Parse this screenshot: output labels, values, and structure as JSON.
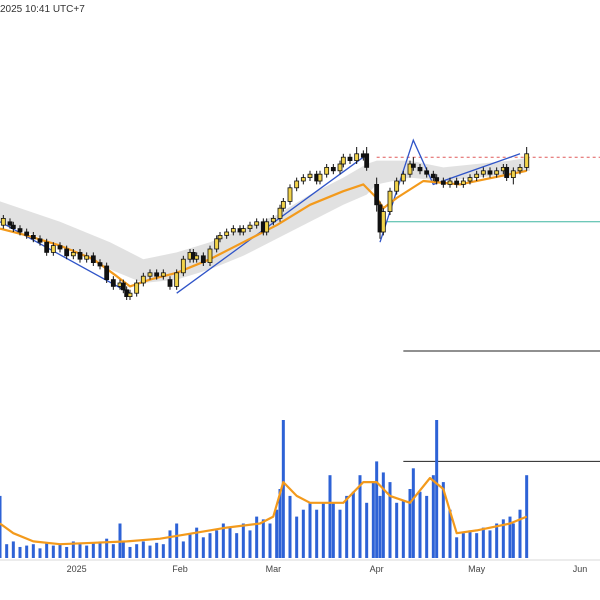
{
  "header": {
    "timestamp": "2025 10:41 UTC+7"
  },
  "colors": {
    "candle_up_body": "#f2d34a",
    "candle_down_body": "#111111",
    "moving_average": "#f39a1c",
    "band_fill": "#dcdcdc",
    "trend_lines": "#2f54c8",
    "volume_bar": "#2d62d6",
    "volume_average": "#f39a1c",
    "resistance_line": "#e05a5a",
    "support_line": "#3fb6a0",
    "reference_line": "#222222"
  },
  "chart_data": {
    "type": "candlestick",
    "x_axis": {
      "ticks": [
        "2025",
        "Feb",
        "Mar",
        "Apr",
        "May",
        "Jun"
      ],
      "tick_days": [
        0,
        31,
        59,
        90,
        120,
        151
      ],
      "range_days": [
        -23,
        157
      ]
    },
    "price_pane": {
      "ylim": [
        0,
        100
      ],
      "candles": [
        {
          "d": -22,
          "o": 72,
          "c": 74,
          "h": 75,
          "l": 71
        },
        {
          "d": -20,
          "o": 73,
          "c": 72,
          "h": 74,
          "l": 71
        },
        {
          "d": -19,
          "o": 72,
          "c": 71,
          "h": 73,
          "l": 70
        },
        {
          "d": -17,
          "o": 71,
          "c": 70,
          "h": 72,
          "l": 69
        },
        {
          "d": -15,
          "o": 70,
          "c": 69,
          "h": 71,
          "l": 68
        },
        {
          "d": -13,
          "o": 69,
          "c": 68,
          "h": 70,
          "l": 67
        },
        {
          "d": -11,
          "o": 68,
          "c": 67,
          "h": 69,
          "l": 66
        },
        {
          "d": -9,
          "o": 67,
          "c": 64,
          "h": 68,
          "l": 63
        },
        {
          "d": -7,
          "o": 64,
          "c": 66,
          "h": 67,
          "l": 63
        },
        {
          "d": -5,
          "o": 66,
          "c": 65,
          "h": 67,
          "l": 64
        },
        {
          "d": -3,
          "o": 65,
          "c": 63,
          "h": 66,
          "l": 62
        },
        {
          "d": -1,
          "o": 63,
          "c": 64,
          "h": 65,
          "l": 62
        },
        {
          "d": 1,
          "o": 64,
          "c": 62,
          "h": 65,
          "l": 61
        },
        {
          "d": 3,
          "o": 62,
          "c": 63,
          "h": 64,
          "l": 61
        },
        {
          "d": 5,
          "o": 63,
          "c": 61,
          "h": 64,
          "l": 60
        },
        {
          "d": 7,
          "o": 61,
          "c": 60,
          "h": 62,
          "l": 59
        },
        {
          "d": 9,
          "o": 60,
          "c": 56,
          "h": 61,
          "l": 55
        },
        {
          "d": 11,
          "o": 56,
          "c": 54,
          "h": 57,
          "l": 53
        },
        {
          "d": 13,
          "o": 54,
          "c": 55,
          "h": 56,
          "l": 53
        },
        {
          "d": 14,
          "o": 55,
          "c": 53,
          "h": 56,
          "l": 52
        },
        {
          "d": 15,
          "o": 53,
          "c": 51,
          "h": 54,
          "l": 50
        },
        {
          "d": 16,
          "o": 51,
          "c": 52,
          "h": 53,
          "l": 50
        },
        {
          "d": 18,
          "o": 52,
          "c": 55,
          "h": 56,
          "l": 51
        },
        {
          "d": 20,
          "o": 55,
          "c": 57,
          "h": 58,
          "l": 54
        },
        {
          "d": 22,
          "o": 57,
          "c": 58,
          "h": 59,
          "l": 56
        },
        {
          "d": 24,
          "o": 58,
          "c": 57,
          "h": 59,
          "l": 56
        },
        {
          "d": 26,
          "o": 57,
          "c": 58,
          "h": 59,
          "l": 56
        },
        {
          "d": 28,
          "o": 56,
          "c": 54,
          "h": 57,
          "l": 53
        },
        {
          "d": 30,
          "o": 54,
          "c": 58,
          "h": 59,
          "l": 53
        },
        {
          "d": 32,
          "o": 58,
          "c": 62,
          "h": 63,
          "l": 57
        },
        {
          "d": 34,
          "o": 62,
          "c": 64,
          "h": 65,
          "l": 61
        },
        {
          "d": 35,
          "o": 64,
          "c": 62,
          "h": 65,
          "l": 61
        },
        {
          "d": 36,
          "o": 62,
          "c": 63,
          "h": 64,
          "l": 61
        },
        {
          "d": 38,
          "o": 63,
          "c": 61,
          "h": 64,
          "l": 60
        },
        {
          "d": 40,
          "o": 61,
          "c": 65,
          "h": 66,
          "l": 60
        },
        {
          "d": 42,
          "o": 65,
          "c": 68,
          "h": 69,
          "l": 64
        },
        {
          "d": 43,
          "o": 68,
          "c": 69,
          "h": 70,
          "l": 67
        },
        {
          "d": 45,
          "o": 69,
          "c": 70,
          "h": 71,
          "l": 68
        },
        {
          "d": 47,
          "o": 70,
          "c": 71,
          "h": 72,
          "l": 69
        },
        {
          "d": 49,
          "o": 71,
          "c": 70,
          "h": 72,
          "l": 69
        },
        {
          "d": 50,
          "o": 70,
          "c": 71,
          "h": 72,
          "l": 69
        },
        {
          "d": 52,
          "o": 71,
          "c": 72,
          "h": 73,
          "l": 70
        },
        {
          "d": 54,
          "o": 72,
          "c": 73,
          "h": 74,
          "l": 71
        },
        {
          "d": 56,
          "o": 73,
          "c": 70,
          "h": 74,
          "l": 69
        },
        {
          "d": 57,
          "o": 70,
          "c": 73,
          "h": 74,
          "l": 69
        },
        {
          "d": 59,
          "o": 73,
          "c": 74,
          "h": 75,
          "l": 72
        },
        {
          "d": 61,
          "o": 74,
          "c": 77,
          "h": 78,
          "l": 73
        },
        {
          "d": 62,
          "o": 77,
          "c": 79,
          "h": 80,
          "l": 76
        },
        {
          "d": 64,
          "o": 79,
          "c": 83,
          "h": 84,
          "l": 78
        },
        {
          "d": 66,
          "o": 83,
          "c": 85,
          "h": 86,
          "l": 82
        },
        {
          "d": 68,
          "o": 85,
          "c": 86,
          "h": 87,
          "l": 84
        },
        {
          "d": 70,
          "o": 86,
          "c": 87,
          "h": 88,
          "l": 85
        },
        {
          "d": 72,
          "o": 87,
          "c": 85,
          "h": 88,
          "l": 84
        },
        {
          "d": 73,
          "o": 85,
          "c": 87,
          "h": 88,
          "l": 84
        },
        {
          "d": 75,
          "o": 87,
          "c": 89,
          "h": 90,
          "l": 86
        },
        {
          "d": 77,
          "o": 89,
          "c": 88,
          "h": 90,
          "l": 87
        },
        {
          "d": 79,
          "o": 88,
          "c": 90,
          "h": 91,
          "l": 87
        },
        {
          "d": 80,
          "o": 90,
          "c": 92,
          "h": 93,
          "l": 89
        },
        {
          "d": 82,
          "o": 92,
          "c": 91,
          "h": 93,
          "l": 90
        },
        {
          "d": 84,
          "o": 91,
          "c": 93,
          "h": 95,
          "l": 90
        },
        {
          "d": 86,
          "o": 93,
          "c": 92,
          "h": 94,
          "l": 91
        },
        {
          "d": 87,
          "o": 93,
          "c": 89,
          "h": 95,
          "l": 88
        },
        {
          "d": 90,
          "o": 84,
          "c": 78,
          "h": 86,
          "l": 76
        },
        {
          "d": 91,
          "o": 78,
          "c": 70,
          "h": 79,
          "l": 68
        },
        {
          "d": 92,
          "o": 70,
          "c": 76,
          "h": 77,
          "l": 69
        },
        {
          "d": 94,
          "o": 76,
          "c": 82,
          "h": 83,
          "l": 75
        },
        {
          "d": 96,
          "o": 82,
          "c": 85,
          "h": 86,
          "l": 81
        },
        {
          "d": 98,
          "o": 85,
          "c": 87,
          "h": 88,
          "l": 84
        },
        {
          "d": 100,
          "o": 87,
          "c": 90,
          "h": 91,
          "l": 86
        },
        {
          "d": 101,
          "o": 90,
          "c": 89,
          "h": 92,
          "l": 88
        },
        {
          "d": 103,
          "o": 89,
          "c": 88,
          "h": 90,
          "l": 87
        },
        {
          "d": 105,
          "o": 88,
          "c": 87,
          "h": 89,
          "l": 86
        },
        {
          "d": 107,
          "o": 87,
          "c": 86,
          "h": 88,
          "l": 85
        },
        {
          "d": 108,
          "o": 86,
          "c": 85,
          "h": 87,
          "l": 84
        },
        {
          "d": 110,
          "o": 85,
          "c": 84,
          "h": 86,
          "l": 83
        },
        {
          "d": 112,
          "o": 84,
          "c": 85,
          "h": 86,
          "l": 83
        },
        {
          "d": 114,
          "o": 85,
          "c": 84,
          "h": 86,
          "l": 83
        },
        {
          "d": 116,
          "o": 84,
          "c": 85,
          "h": 86,
          "l": 83
        },
        {
          "d": 118,
          "o": 85,
          "c": 86,
          "h": 87,
          "l": 84
        },
        {
          "d": 120,
          "o": 86,
          "c": 87,
          "h": 88,
          "l": 85
        },
        {
          "d": 122,
          "o": 87,
          "c": 88,
          "h": 89,
          "l": 86
        },
        {
          "d": 124,
          "o": 88,
          "c": 87,
          "h": 89,
          "l": 86
        },
        {
          "d": 126,
          "o": 87,
          "c": 88,
          "h": 89,
          "l": 86
        },
        {
          "d": 128,
          "o": 88,
          "c": 89,
          "h": 90,
          "l": 87
        },
        {
          "d": 129,
          "o": 89,
          "c": 86,
          "h": 90,
          "l": 85
        },
        {
          "d": 131,
          "o": 86,
          "c": 88,
          "h": 89,
          "l": 84
        },
        {
          "d": 133,
          "o": 88,
          "c": 89,
          "h": 90,
          "l": 87
        },
        {
          "d": 135,
          "o": 89,
          "c": 93,
          "h": 95,
          "l": 88
        }
      ],
      "moving_average": [
        [
          -23,
          71
        ],
        [
          -15,
          69
        ],
        [
          -5,
          66
        ],
        [
          5,
          62
        ],
        [
          12,
          57
        ],
        [
          16,
          54
        ],
        [
          22,
          56
        ],
        [
          30,
          58
        ],
        [
          40,
          62
        ],
        [
          50,
          67
        ],
        [
          60,
          72
        ],
        [
          70,
          78
        ],
        [
          80,
          82
        ],
        [
          86,
          84
        ],
        [
          90,
          80
        ],
        [
          92,
          77
        ],
        [
          96,
          80
        ],
        [
          104,
          85
        ],
        [
          115,
          84
        ],
        [
          125,
          86
        ],
        [
          135,
          88
        ]
      ],
      "band": [
        [
          -23,
          73,
          79
        ],
        [
          -5,
          66,
          73
        ],
        [
          10,
          59,
          67
        ],
        [
          20,
          55,
          62
        ],
        [
          30,
          56,
          64
        ],
        [
          40,
          59,
          67
        ],
        [
          50,
          63,
          71
        ],
        [
          60,
          68,
          75
        ],
        [
          70,
          73,
          81
        ],
        [
          80,
          78,
          86
        ],
        [
          87,
          81,
          90
        ],
        [
          90,
          84,
          91
        ],
        [
          100,
          86,
          91
        ],
        [
          110,
          85,
          89
        ],
        [
          120,
          86,
          90
        ],
        [
          130,
          87,
          91
        ],
        [
          136,
          88,
          92
        ]
      ],
      "trend_lines": [
        [
          [
            -23,
            73
          ],
          [
            16,
            52
          ]
        ],
        [
          [
            30,
            52
          ],
          [
            86,
            92
          ]
        ],
        [
          [
            91,
            67
          ],
          [
            101,
            97
          ],
          [
            107,
            84
          ],
          [
            133,
            93
          ]
        ]
      ],
      "resistance_level": 92,
      "support_level": 73,
      "lower_reference_level": 35
    },
    "volume_pane": {
      "ylim": [
        0,
        100
      ],
      "bars": [
        [
          -23,
          45
        ],
        [
          -21,
          10
        ],
        [
          -19,
          12
        ],
        [
          -17,
          8
        ],
        [
          -15,
          9
        ],
        [
          -13,
          10
        ],
        [
          -11,
          7
        ],
        [
          -9,
          11
        ],
        [
          -7,
          9
        ],
        [
          -5,
          10
        ],
        [
          -3,
          8
        ],
        [
          -1,
          12
        ],
        [
          1,
          10
        ],
        [
          3,
          9
        ],
        [
          5,
          11
        ],
        [
          7,
          12
        ],
        [
          9,
          14
        ],
        [
          11,
          10
        ],
        [
          13,
          25
        ],
        [
          14,
          12
        ],
        [
          16,
          8
        ],
        [
          18,
          10
        ],
        [
          20,
          12
        ],
        [
          22,
          9
        ],
        [
          24,
          11
        ],
        [
          26,
          10
        ],
        [
          28,
          20
        ],
        [
          30,
          25
        ],
        [
          32,
          12
        ],
        [
          34,
          18
        ],
        [
          36,
          22
        ],
        [
          38,
          15
        ],
        [
          40,
          18
        ],
        [
          42,
          20
        ],
        [
          44,
          25
        ],
        [
          46,
          22
        ],
        [
          48,
          18
        ],
        [
          50,
          25
        ],
        [
          52,
          20
        ],
        [
          54,
          30
        ],
        [
          56,
          28
        ],
        [
          58,
          25
        ],
        [
          60,
          35
        ],
        [
          61,
          50
        ],
        [
          62,
          100
        ],
        [
          64,
          45
        ],
        [
          66,
          30
        ],
        [
          68,
          35
        ],
        [
          70,
          40
        ],
        [
          72,
          35
        ],
        [
          74,
          40
        ],
        [
          76,
          60
        ],
        [
          77,
          40
        ],
        [
          79,
          35
        ],
        [
          81,
          45
        ],
        [
          83,
          48
        ],
        [
          85,
          60
        ],
        [
          87,
          40
        ],
        [
          89,
          55
        ],
        [
          90,
          70
        ],
        [
          91,
          45
        ],
        [
          92,
          62
        ],
        [
          94,
          55
        ],
        [
          96,
          40
        ],
        [
          98,
          42
        ],
        [
          100,
          50
        ],
        [
          101,
          65
        ],
        [
          103,
          48
        ],
        [
          105,
          45
        ],
        [
          107,
          60
        ],
        [
          108,
          100
        ],
        [
          110,
          55
        ],
        [
          112,
          35
        ],
        [
          114,
          15
        ],
        [
          116,
          18
        ],
        [
          118,
          20
        ],
        [
          120,
          18
        ],
        [
          122,
          22
        ],
        [
          124,
          20
        ],
        [
          126,
          25
        ],
        [
          128,
          28
        ],
        [
          130,
          30
        ],
        [
          131,
          25
        ],
        [
          133,
          35
        ],
        [
          135,
          60
        ]
      ],
      "average": [
        [
          -23,
          25
        ],
        [
          -19,
          18
        ],
        [
          -13,
          12
        ],
        [
          -5,
          10
        ],
        [
          5,
          11
        ],
        [
          15,
          12
        ],
        [
          25,
          14
        ],
        [
          35,
          18
        ],
        [
          45,
          22
        ],
        [
          55,
          25
        ],
        [
          59,
          30
        ],
        [
          62,
          55
        ],
        [
          66,
          45
        ],
        [
          70,
          40
        ],
        [
          80,
          40
        ],
        [
          86,
          55
        ],
        [
          90,
          55
        ],
        [
          94,
          45
        ],
        [
          100,
          40
        ],
        [
          106,
          58
        ],
        [
          110,
          50
        ],
        [
          114,
          18
        ],
        [
          120,
          20
        ],
        [
          130,
          25
        ],
        [
          135,
          30
        ]
      ],
      "reference_level": 70
    }
  }
}
